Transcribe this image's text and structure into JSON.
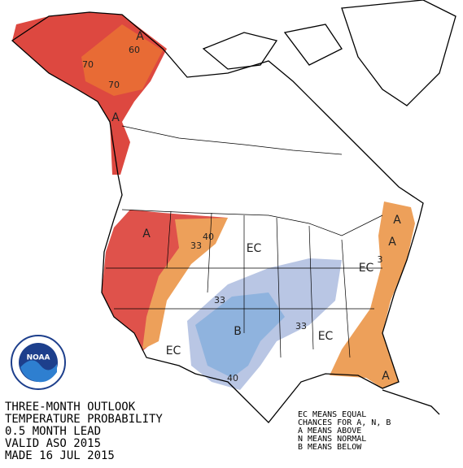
{
  "map_labels": [
    "A",
    "60",
    "70",
    "70",
    "A",
    "A",
    "40",
    "33",
    "EC",
    "33",
    "B",
    "33",
    "EC",
    "40",
    "EC",
    "A",
    "A",
    "A",
    "3",
    "EC"
  ],
  "title_block": {
    "lines": [
      "THREE-MONTH OUTLOOK",
      "TEMPERATURE PROBABILITY",
      "0.5 MONTH LEAD",
      "VALID ASO 2015",
      "MADE 16 JUL 2015"
    ]
  },
  "legend": {
    "lines": [
      "EC MEANS EQUAL",
      "CHANCES FOR A, N, B",
      "A MEANS ABOVE",
      "N MEANS NORMAL",
      "B MEANS BELOW"
    ]
  },
  "logo": {
    "text": "NOAA"
  }
}
